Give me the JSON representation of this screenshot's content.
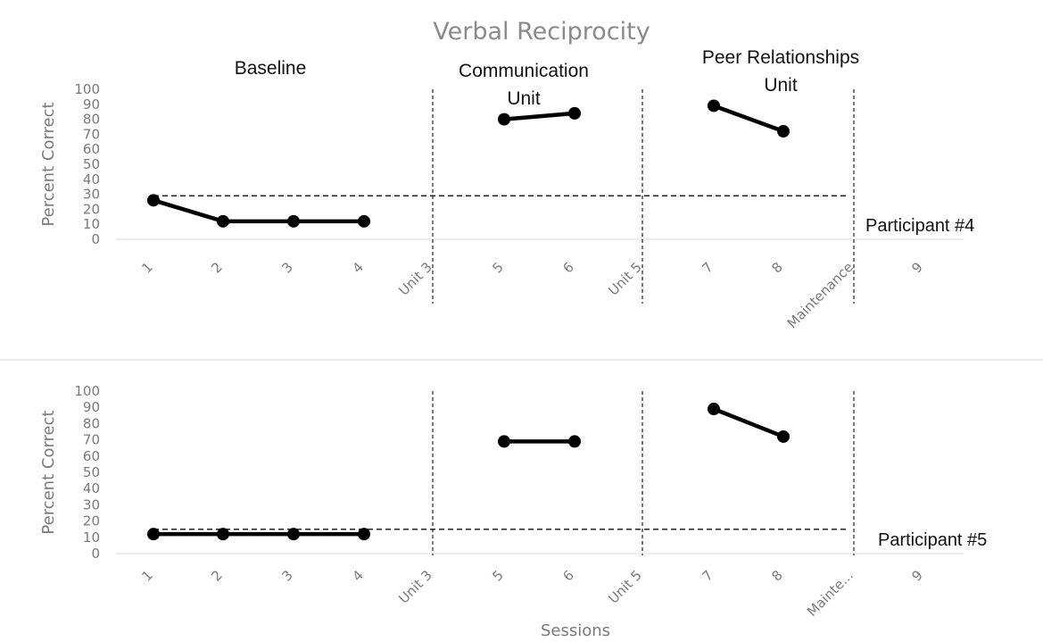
{
  "chart_data": {
    "type": "line",
    "title": "Verbal Reciprocity",
    "xlabel": "Sessions",
    "ylabel": "Percent Correct",
    "phase_labels": [
      {
        "lines": [
          "Baseline"
        ]
      },
      {
        "lines": [
          "Communication",
          "Unit"
        ]
      },
      {
        "lines": [
          "Peer Relationships",
          "Unit"
        ]
      }
    ],
    "panels": [
      {
        "participant": "Participant #4",
        "ylim": [
          0,
          100
        ],
        "yticks": [
          "0",
          "10",
          "20",
          "30",
          "40",
          "50",
          "60",
          "70",
          "80",
          "90",
          "100"
        ],
        "categories": [
          "1",
          "2",
          "3",
          "4",
          "Unit 3",
          "5",
          "6",
          "Unit 5",
          "7",
          "8",
          "Maintenance",
          "9"
        ],
        "criterion": 29,
        "series": [
          {
            "segment": "Baseline",
            "x": [
              "1",
              "2",
              "3",
              "4"
            ],
            "values": [
              26,
              12,
              12,
              12
            ]
          },
          {
            "segment": "Communication Unit",
            "x": [
              "5",
              "6"
            ],
            "values": [
              80,
              84
            ]
          },
          {
            "segment": "Peer Relationships Unit",
            "x": [
              "7",
              "8"
            ],
            "values": [
              89,
              72
            ]
          }
        ]
      },
      {
        "participant": "Participant #5",
        "ylim": [
          0,
          100
        ],
        "yticks": [
          "0",
          "10",
          "20",
          "30",
          "40",
          "50",
          "60",
          "70",
          "80",
          "90",
          "100"
        ],
        "categories": [
          "1",
          "2",
          "3",
          "4",
          "Unit 3",
          "5",
          "6",
          "Unit 5",
          "7",
          "8",
          "Mainte...",
          "9"
        ],
        "criterion": 15,
        "series": [
          {
            "segment": "Baseline",
            "x": [
              "1",
              "2",
              "3",
              "4"
            ],
            "values": [
              12,
              12,
              12,
              12
            ]
          },
          {
            "segment": "Communication Unit",
            "x": [
              "5",
              "6"
            ],
            "values": [
              69,
              69
            ]
          },
          {
            "segment": "Peer Relationships Unit",
            "x": [
              "7",
              "8"
            ],
            "values": [
              89,
              72
            ]
          }
        ]
      }
    ],
    "colors": {
      "series": "#000000",
      "axis_text": "#7a7a7a",
      "title": "#8a8a8a",
      "phase_line": "#333333"
    }
  }
}
